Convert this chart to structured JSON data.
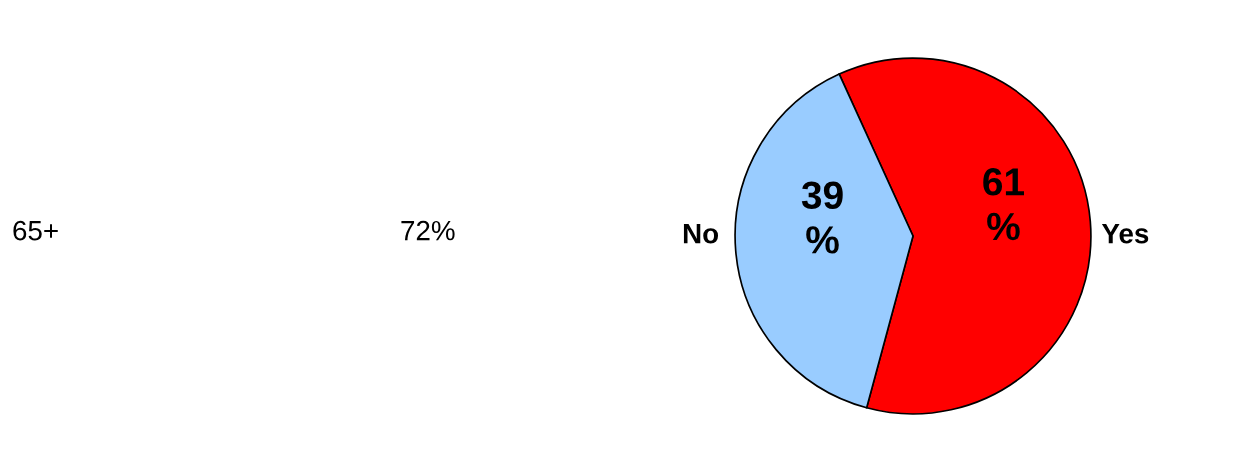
{
  "chart_data": {
    "type": "pie",
    "categories": [
      "Yes",
      "No"
    ],
    "values": [
      61,
      39
    ],
    "colors": [
      "#ff0000",
      "#99ccff"
    ],
    "value_labels": [
      "61\n%",
      "39\n%"
    ],
    "annotations": [
      "65+",
      "72%"
    ],
    "legend": false
  }
}
